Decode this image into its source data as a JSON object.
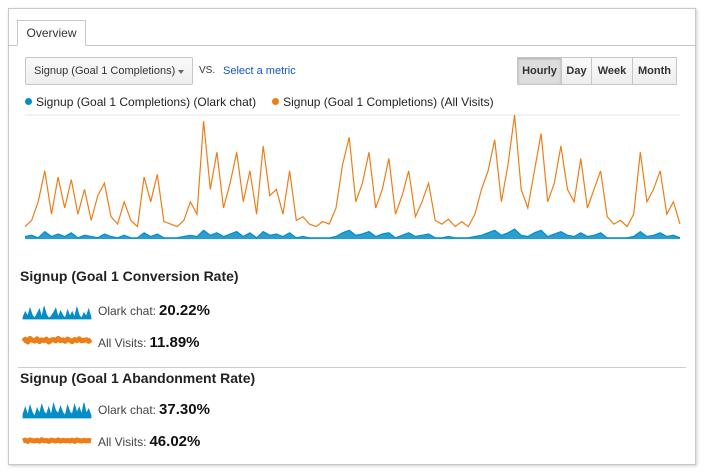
{
  "tabs": [
    "Overview"
  ],
  "controls": {
    "metric": "Signup (Goal 1 Completions)",
    "vs": "VS.",
    "select_metric": "Select a metric",
    "granularity": [
      "Hourly",
      "Day",
      "Week",
      "Month"
    ],
    "selected": "Hourly"
  },
  "chart_data": {
    "type": "line",
    "ylim": [
      0,
      100
    ],
    "grid": true,
    "series": [
      {
        "name": "Signup (Goal 1 Completions) (Olark chat)",
        "color": "#058dc7",
        "values": [
          2,
          3,
          1,
          6,
          2,
          4,
          2,
          5,
          1,
          3,
          2,
          1,
          4,
          2,
          1,
          3,
          1,
          1,
          5,
          2,
          4,
          1,
          1,
          1,
          2,
          3,
          2,
          7,
          3,
          5,
          2,
          4,
          6,
          2,
          5,
          1,
          6,
          3,
          4,
          2,
          5,
          1,
          2,
          1,
          1,
          1,
          1,
          2,
          5,
          7,
          3,
          4,
          6,
          2,
          4,
          5,
          1,
          3,
          5,
          2,
          3,
          4,
          1,
          1,
          2,
          1,
          1,
          1,
          2,
          3,
          5,
          7,
          3,
          5,
          8,
          3,
          2,
          5,
          7,
          2,
          4,
          6,
          3,
          2,
          5,
          2,
          3,
          5,
          1,
          1,
          1,
          1,
          2,
          6,
          2,
          3,
          5,
          2,
          3,
          1
        ]
      },
      {
        "name": "Signup (Goal 1 Completions) (All Visits)",
        "color": "#ed7e17",
        "values": [
          10,
          15,
          30,
          55,
          20,
          50,
          25,
          48,
          20,
          40,
          15,
          35,
          45,
          18,
          12,
          30,
          15,
          10,
          50,
          30,
          52,
          14,
          12,
          10,
          15,
          30,
          20,
          95,
          40,
          70,
          25,
          45,
          70,
          30,
          55,
          20,
          75,
          35,
          40,
          20,
          55,
          15,
          18,
          12,
          10,
          14,
          12,
          25,
          60,
          82,
          30,
          45,
          70,
          25,
          40,
          65,
          20,
          35,
          55,
          18,
          30,
          45,
          15,
          12,
          16,
          10,
          14,
          10,
          20,
          40,
          55,
          80,
          30,
          60,
          100,
          40,
          25,
          55,
          85,
          30,
          45,
          75,
          40,
          30,
          65,
          25,
          40,
          55,
          18,
          12,
          15,
          10,
          20,
          70,
          30,
          40,
          55,
          20,
          30,
          12
        ]
      }
    ]
  },
  "sparkline_ylim": [
    0,
    100
  ],
  "sections": [
    {
      "title": "Signup (Goal 1 Conversion Rate)",
      "rows": [
        {
          "label": "Olark chat:",
          "value": "20.22%",
          "color": "#058dc7",
          "spark": [
            10,
            40,
            15,
            60,
            20,
            5,
            30,
            55,
            10,
            70,
            25,
            5,
            15,
            35,
            60,
            10,
            45,
            20,
            5,
            50,
            15,
            40,
            10,
            65,
            20,
            5,
            35,
            15,
            55,
            10
          ]
        },
        {
          "label": "All Visits:",
          "value": "11.89%",
          "color": "#ed7e17",
          "spark": [
            55,
            65,
            50,
            70,
            60,
            55,
            68,
            52,
            62,
            58,
            66,
            50,
            60,
            64,
            56,
            70,
            58,
            62,
            54,
            66,
            60,
            52,
            64,
            58,
            68,
            56,
            60,
            62,
            54,
            64
          ]
        }
      ]
    },
    {
      "title": "Signup (Goal 1 Abandonment Rate)",
      "rows": [
        {
          "label": "Olark chat:",
          "value": "37.30%",
          "color": "#058dc7",
          "spark": [
            20,
            60,
            15,
            70,
            30,
            10,
            55,
            25,
            75,
            35,
            20,
            60,
            15,
            80,
            40,
            25,
            65,
            30,
            15,
            70,
            35,
            20,
            75,
            30,
            60,
            20,
            85,
            25,
            50,
            15
          ]
        },
        {
          "label": "All Visits:",
          "value": "46.02%",
          "color": "#ed7e17",
          "spark": [
            50,
            55,
            48,
            56,
            52,
            50,
            54,
            49,
            57,
            51,
            53,
            48,
            55,
            52,
            50,
            56,
            49,
            54,
            51,
            53,
            50,
            55,
            48,
            56,
            52,
            50,
            54,
            51,
            53,
            50
          ]
        }
      ]
    }
  ]
}
